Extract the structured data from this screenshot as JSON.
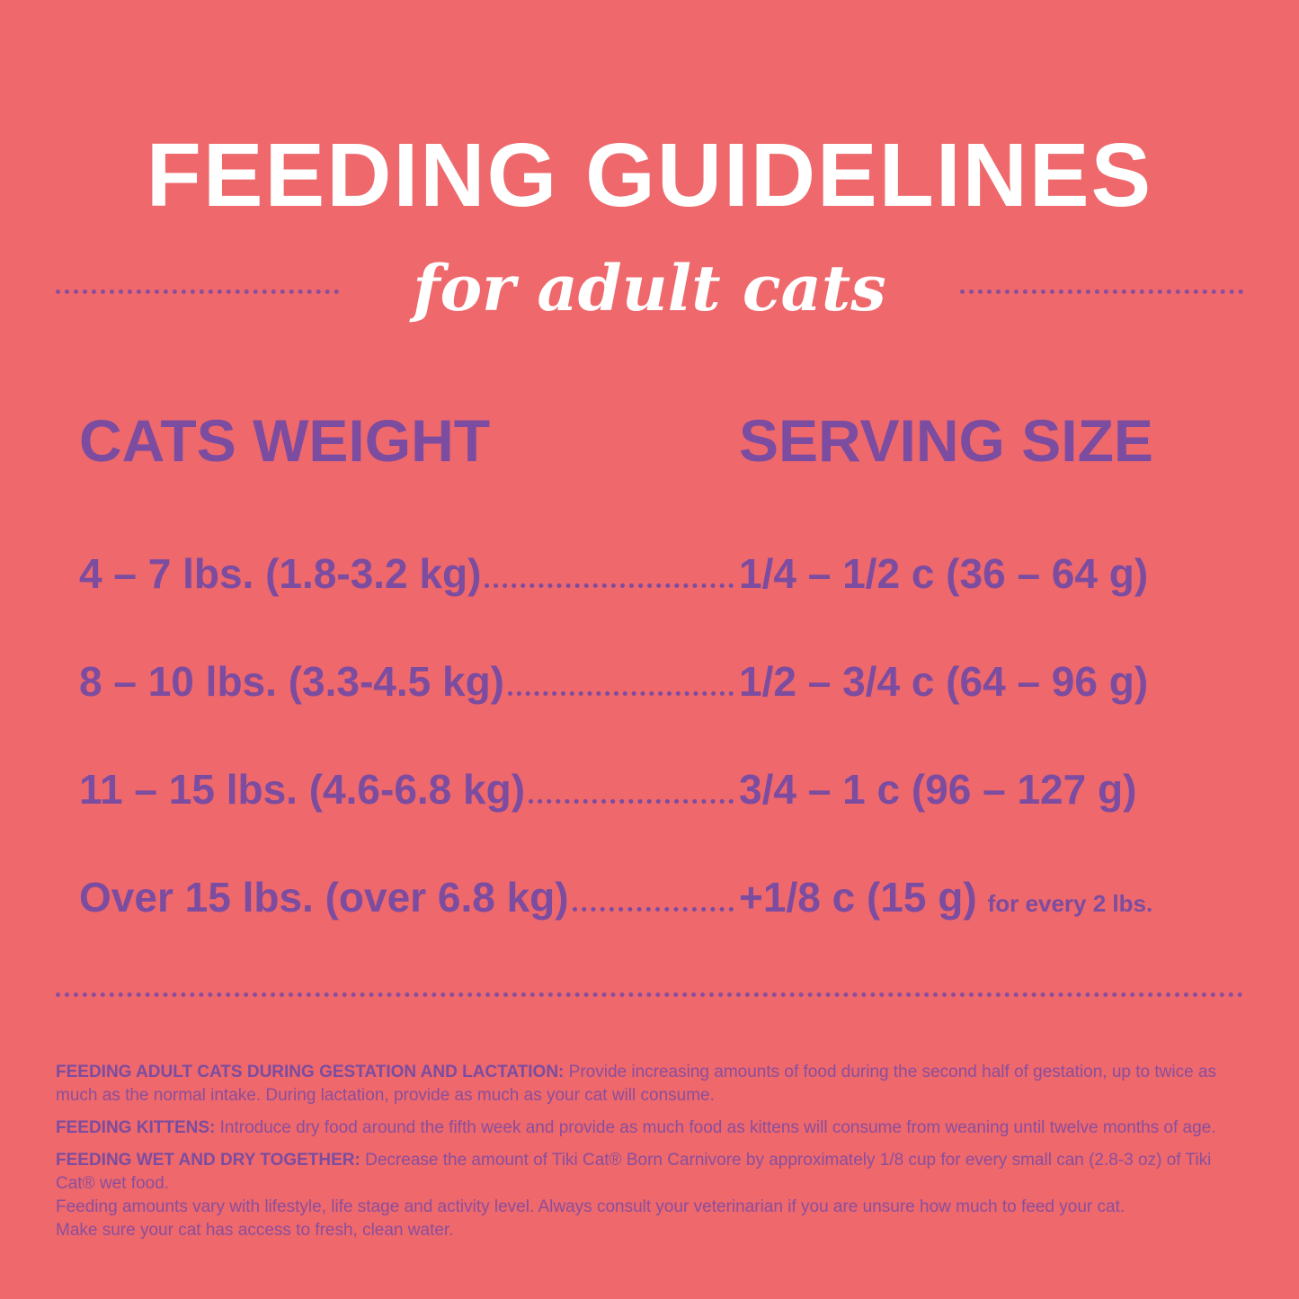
{
  "title": "FEEDING GUIDELINES",
  "subtitle": "for adult cats",
  "table": {
    "headers": [
      "CATS WEIGHT",
      "SERVING SIZE"
    ],
    "rows": [
      {
        "weight": "4 – 7 lbs. (1.8-3.2 kg)",
        "serving": "1/4 – 1/2 c (36 – 64 g)",
        "note": ""
      },
      {
        "weight": "8 – 10 lbs. (3.3-4.5 kg)",
        "serving": "1/2 – 3/4 c (64 – 96 g)",
        "note": ""
      },
      {
        "weight": "11 – 15 lbs. (4.6-6.8 kg)",
        "serving": "3/4 – 1 c (96 – 127 g)",
        "note": ""
      },
      {
        "weight": "Over 15 lbs. (over 6.8 kg)",
        "serving": "+1/8 c (15 g)",
        "note": "for every 2 lbs."
      }
    ]
  },
  "notes": [
    {
      "label": "FEEDING ADULT CATS DURING GESTATION AND LACTATION:",
      "text": " Provide increasing amounts of food during the second half of gestation, up to twice as much as the normal intake.  During lactation, provide as much as your cat will consume."
    },
    {
      "label": "FEEDING KITTENS:",
      "text": " Introduce dry food around the fifth week and provide as much food as kittens will consume from weaning until twelve months of age."
    },
    {
      "label": "FEEDING WET AND DRY TOGETHER:",
      "text": " Decrease the amount of Tiki Cat® Born Carnivore by approximately 1/8 cup for every small can (2.8-3 oz) of Tiki Cat® wet food.",
      "extra": [
        "Feeding amounts vary with lifestyle, life stage and activity level.  Always consult your veterinarian if you are unsure how much to feed your cat.",
        "Make sure your cat has access to fresh, clean water."
      ]
    }
  ],
  "colors": {
    "background": "#EE686C",
    "accent": "#7B4C9F",
    "title": "#FFFFFF"
  }
}
